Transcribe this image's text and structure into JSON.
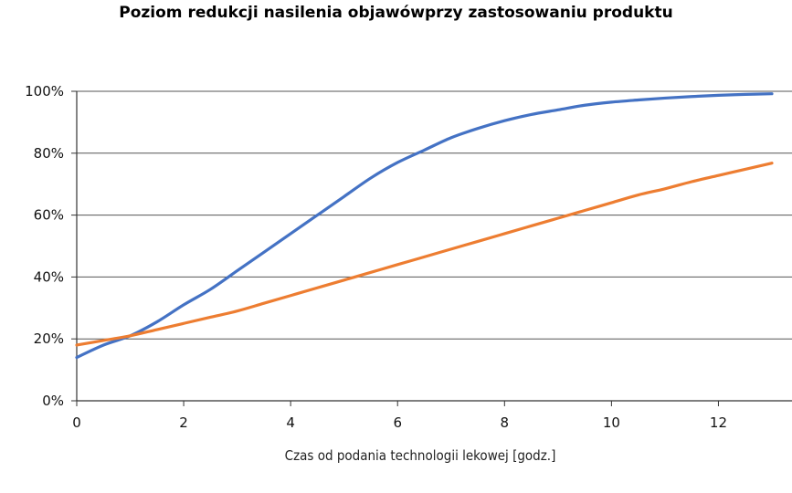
{
  "chart_data": {
    "type": "line",
    "title": "Poziom redukcji nasilenia objawówprzy zastosowaniu produktu",
    "xlabel": "Czas od podania technologii lekowej [godz.]",
    "ylabel": "",
    "xlim": [
      0,
      13
    ],
    "ylim": [
      0,
      1
    ],
    "x_ticks": [
      "0",
      "2",
      "4",
      "6",
      "8",
      "10",
      "12"
    ],
    "y_ticks": [
      "0%",
      "20%",
      "40%",
      "60%",
      "80%",
      "100%"
    ],
    "grid": "horizontal",
    "legend": "none",
    "series": [
      {
        "color": "#4472c4",
        "x": [
          0,
          0.5,
          1,
          1.5,
          2,
          2.5,
          3,
          3.5,
          4,
          4.5,
          5,
          5.5,
          6,
          6.5,
          7,
          7.5,
          8,
          8.5,
          9,
          9.5,
          10,
          10.5,
          11,
          11.5,
          12,
          12.5,
          13
        ],
        "values": [
          0.14,
          0.18,
          0.21,
          0.255,
          0.31,
          0.36,
          0.42,
          0.48,
          0.54,
          0.6,
          0.66,
          0.72,
          0.77,
          0.81,
          0.85,
          0.88,
          0.905,
          0.925,
          0.94,
          0.955,
          0.965,
          0.972,
          0.978,
          0.983,
          0.987,
          0.99,
          0.992
        ]
      },
      {
        "color": "#ed7d31",
        "x": [
          0,
          0.5,
          1,
          1.5,
          2,
          2.5,
          3,
          3.5,
          4,
          4.5,
          5,
          5.5,
          6,
          6.5,
          7,
          7.5,
          8,
          8.5,
          9,
          9.5,
          10,
          10.5,
          11,
          11.5,
          12,
          12.5,
          13
        ],
        "values": [
          0.18,
          0.195,
          0.21,
          0.23,
          0.25,
          0.27,
          0.29,
          0.315,
          0.34,
          0.365,
          0.39,
          0.415,
          0.44,
          0.465,
          0.49,
          0.515,
          0.54,
          0.565,
          0.59,
          0.615,
          0.64,
          0.665,
          0.685,
          0.708,
          0.728,
          0.748,
          0.768
        ]
      }
    ]
  }
}
